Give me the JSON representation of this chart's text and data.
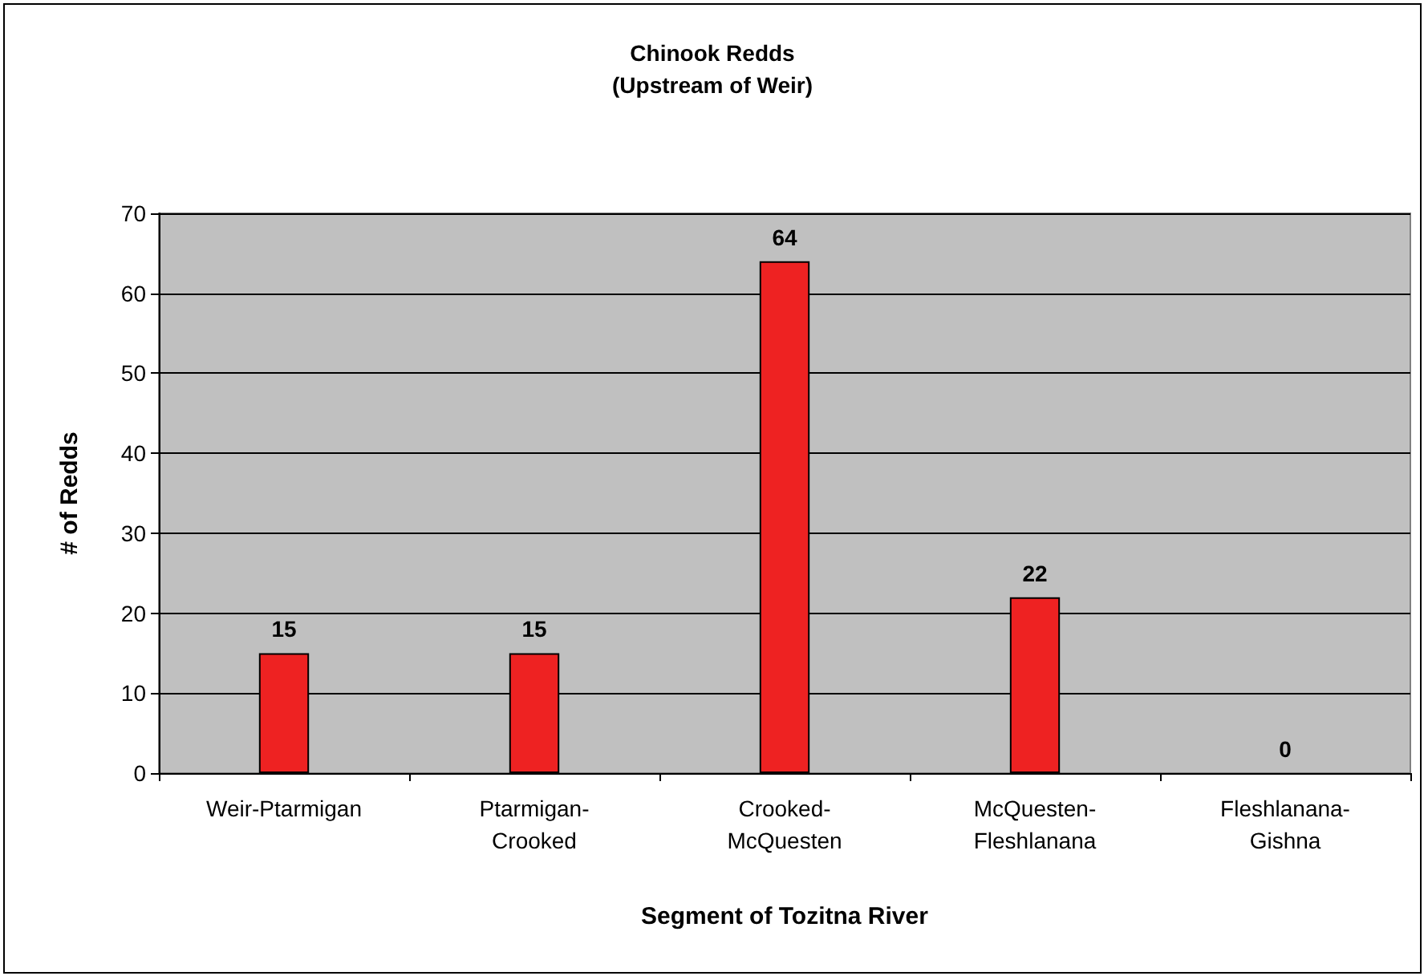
{
  "chart_data": {
    "type": "bar",
    "title": "Chinook Redds",
    "subtitle": "(Upstream of Weir)",
    "xlabel": "Segment of Tozitna River",
    "ylabel": "# of Redds",
    "categories": [
      "Weir-Ptarmigan",
      "Ptarmigan-\nCrooked",
      "Crooked-\nMcQuesten",
      "McQuesten-\nFleshlanana",
      "Fleshlanana-\nGishna"
    ],
    "values": [
      15,
      15,
      64,
      22,
      0
    ],
    "color": "#ee2222",
    "ylim": [
      0,
      70
    ],
    "yticks": [
      0,
      10,
      20,
      30,
      40,
      50,
      60,
      70
    ],
    "grid": "y",
    "data_labels": true
  }
}
